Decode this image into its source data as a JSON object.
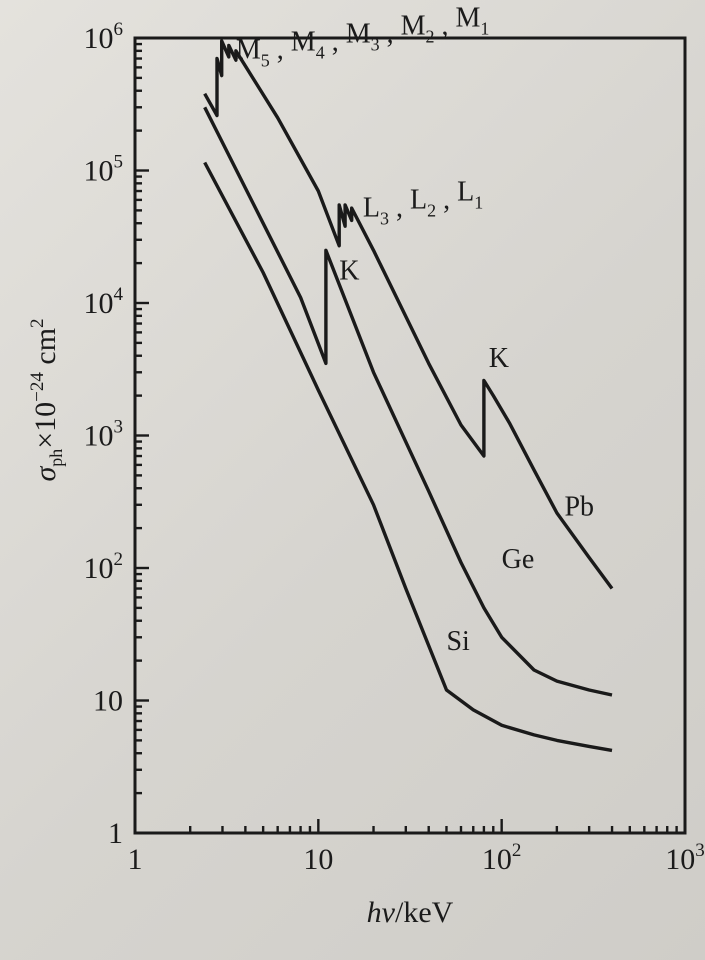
{
  "chart_data": {
    "type": "line",
    "xscale": "log",
    "yscale": "log",
    "xlim": [
      1,
      1000
    ],
    "ylim": [
      1,
      1000000
    ],
    "xlabel": {
      "italic": "hv",
      "rest": "/keV"
    },
    "ylabel": {
      "sigma": "σ",
      "sub": "ph",
      "mid": "×10",
      "exp": "−24",
      "unit": " cm",
      "unit_exp": "2"
    },
    "x_ticks": [
      {
        "value": 1,
        "base": "1",
        "exp": ""
      },
      {
        "value": 10,
        "base": "10",
        "exp": ""
      },
      {
        "value": 100,
        "base": "10",
        "exp": "2"
      },
      {
        "value": 1000,
        "base": "10",
        "exp": "3"
      }
    ],
    "y_ticks": [
      {
        "value": 1,
        "base": "1",
        "exp": ""
      },
      {
        "value": 10,
        "base": "10",
        "exp": ""
      },
      {
        "value": 100,
        "base": "10",
        "exp": "2"
      },
      {
        "value": 1000,
        "base": "10",
        "exp": "3"
      },
      {
        "value": 10000,
        "base": "10",
        "exp": "4"
      },
      {
        "value": 100000,
        "base": "10",
        "exp": "5"
      },
      {
        "value": 1000000,
        "base": "10",
        "exp": "6"
      }
    ],
    "series": [
      {
        "name": "Pb",
        "x": [
          2.4,
          2.8,
          2.8,
          2.97,
          2.97,
          3.25,
          3.25,
          3.55,
          3.55,
          3.9,
          6.0,
          10.0,
          13.0,
          13.0,
          14.0,
          14.0,
          15.2,
          15.2,
          20.0,
          40.0,
          60.0,
          80.0,
          80.0,
          90.0,
          110.0,
          150.0,
          200.0,
          300.0,
          400.0
        ],
        "y": [
          380000,
          260000,
          700000,
          520000,
          950000,
          720000,
          880000,
          680000,
          800000,
          650000,
          250000,
          70000,
          27000,
          55000,
          38000,
          55000,
          42000,
          52000,
          25000,
          3500,
          1200,
          700,
          2600,
          2000,
          1250,
          550,
          260,
          120,
          70
        ]
      },
      {
        "name": "Ge",
        "x": [
          2.4,
          5.0,
          8.0,
          11.0,
          11.0,
          20.0,
          40.0,
          60.0,
          80.0,
          100.0,
          150.0,
          200.0,
          300.0,
          400.0
        ],
        "y": [
          300000,
          40000,
          11000,
          3500,
          25000,
          3000,
          380,
          110,
          50,
          30,
          17,
          14,
          12,
          11
        ]
      },
      {
        "name": "Si",
        "x": [
          2.4,
          5.0,
          10.0,
          20.0,
          30.0,
          50.0,
          70.0,
          100.0,
          150.0,
          200.0,
          300.0,
          400.0
        ],
        "y": [
          115000,
          17000,
          2200,
          300,
          70,
          12,
          8.5,
          6.5,
          5.5,
          5,
          4.5,
          4.2
        ]
      }
    ],
    "annotations": [
      {
        "name": "pb-m-edges",
        "parts": [
          [
            "M",
            "5"
          ],
          [
            "M",
            "4"
          ],
          [
            "M",
            "3"
          ],
          [
            "M",
            "2"
          ],
          [
            "M",
            "1"
          ]
        ],
        "sep": " , ",
        "x": 3.55,
        "y": 700000
      },
      {
        "name": "pb-l-edges",
        "parts": [
          [
            "L",
            "3"
          ],
          [
            "L",
            "2"
          ],
          [
            "L",
            "1"
          ]
        ],
        "sep": " , ",
        "x": 17.5,
        "y": 45000
      },
      {
        "name": "ge-k-edge",
        "parts": [
          [
            "K",
            ""
          ]
        ],
        "sep": "",
        "x": 13.0,
        "y": 15000
      },
      {
        "name": "pb-k-edge",
        "parts": [
          [
            "K",
            ""
          ]
        ],
        "sep": "",
        "x": 85.0,
        "y": 3300
      },
      {
        "name": "label-pb",
        "parts": [
          [
            "Pb",
            ""
          ]
        ],
        "sep": "",
        "x": 220.0,
        "y": 250
      },
      {
        "name": "label-ge",
        "parts": [
          [
            "Ge",
            ""
          ]
        ],
        "sep": "",
        "x": 100.0,
        "y": 100
      },
      {
        "name": "label-si",
        "parts": [
          [
            "Si",
            ""
          ]
        ],
        "sep": "",
        "x": 50.0,
        "y": 24
      }
    ],
    "grid": false,
    "legend": "none",
    "colors": {
      "ink": "#1a1a1a",
      "paper": "#dcdad5"
    }
  }
}
